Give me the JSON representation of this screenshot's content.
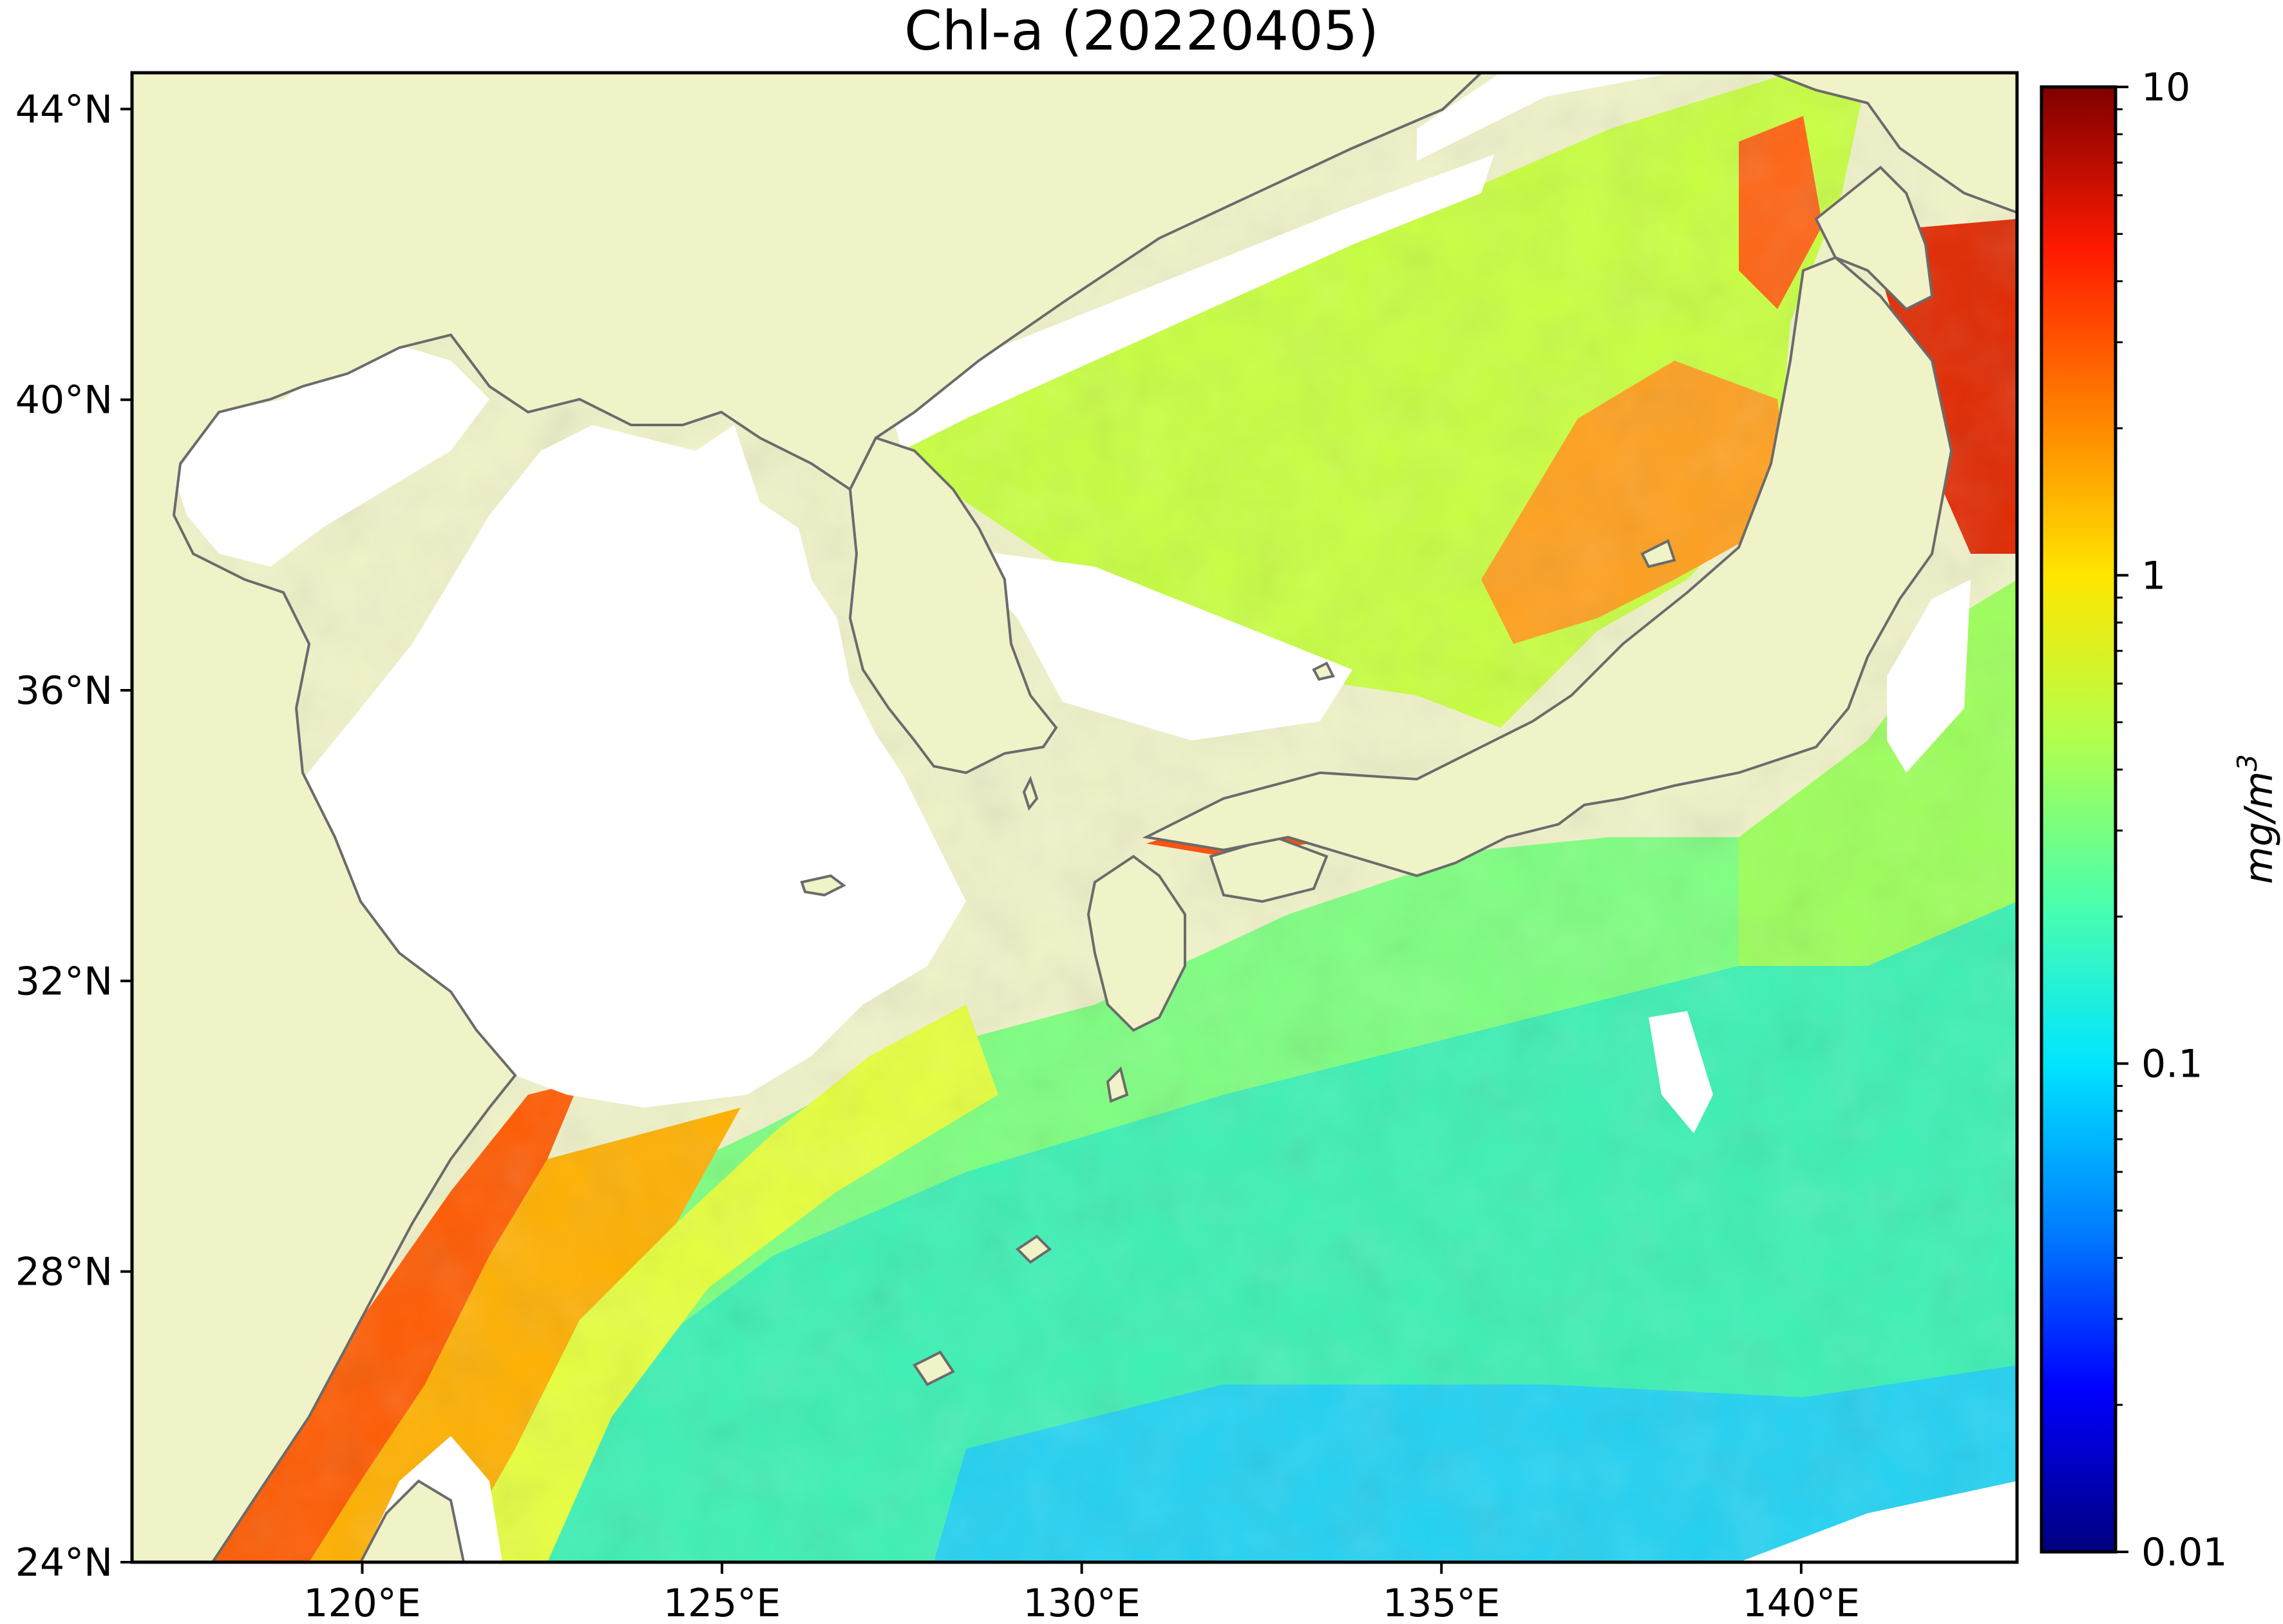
{
  "title": "Chl-a (20220405)",
  "map": {
    "lon_range": [
      116.8,
      143.0
    ],
    "lat_range": [
      24.0,
      44.5
    ],
    "longitude_ticks": [
      {
        "value": 120,
        "label": "120°E"
      },
      {
        "value": 125,
        "label": "125°E"
      },
      {
        "value": 130,
        "label": "130°E"
      },
      {
        "value": 135,
        "label": "135°E"
      },
      {
        "value": 140,
        "label": "140°E"
      }
    ],
    "latitude_ticks": [
      {
        "value": 24,
        "label": "24°N"
      },
      {
        "value": 28,
        "label": "28°N"
      },
      {
        "value": 32,
        "label": "32°N"
      },
      {
        "value": 36,
        "label": "36°N"
      },
      {
        "value": 40,
        "label": "40°N"
      },
      {
        "value": 44,
        "label": "44°N"
      }
    ]
  },
  "colorbar": {
    "scale": "log",
    "range": [
      0.01,
      10
    ],
    "unit_text": "mg/m",
    "unit_superscript": "3",
    "ticks": [
      {
        "value": 0.01,
        "label": "0.01"
      },
      {
        "value": 0.1,
        "label": "0.1"
      },
      {
        "value": 1,
        "label": "1"
      },
      {
        "value": 10,
        "label": "10"
      }
    ],
    "colors": [
      "#00007f",
      "#0000ff",
      "#0080ff",
      "#00e5ff",
      "#4cffaa",
      "#b2ff4c",
      "#ffe600",
      "#ff8000",
      "#ff1a00",
      "#7f0000"
    ]
  },
  "colors": {
    "land": "#f0f2c8",
    "no_data": "#ffffff",
    "coastline": "#6b6b6b"
  }
}
